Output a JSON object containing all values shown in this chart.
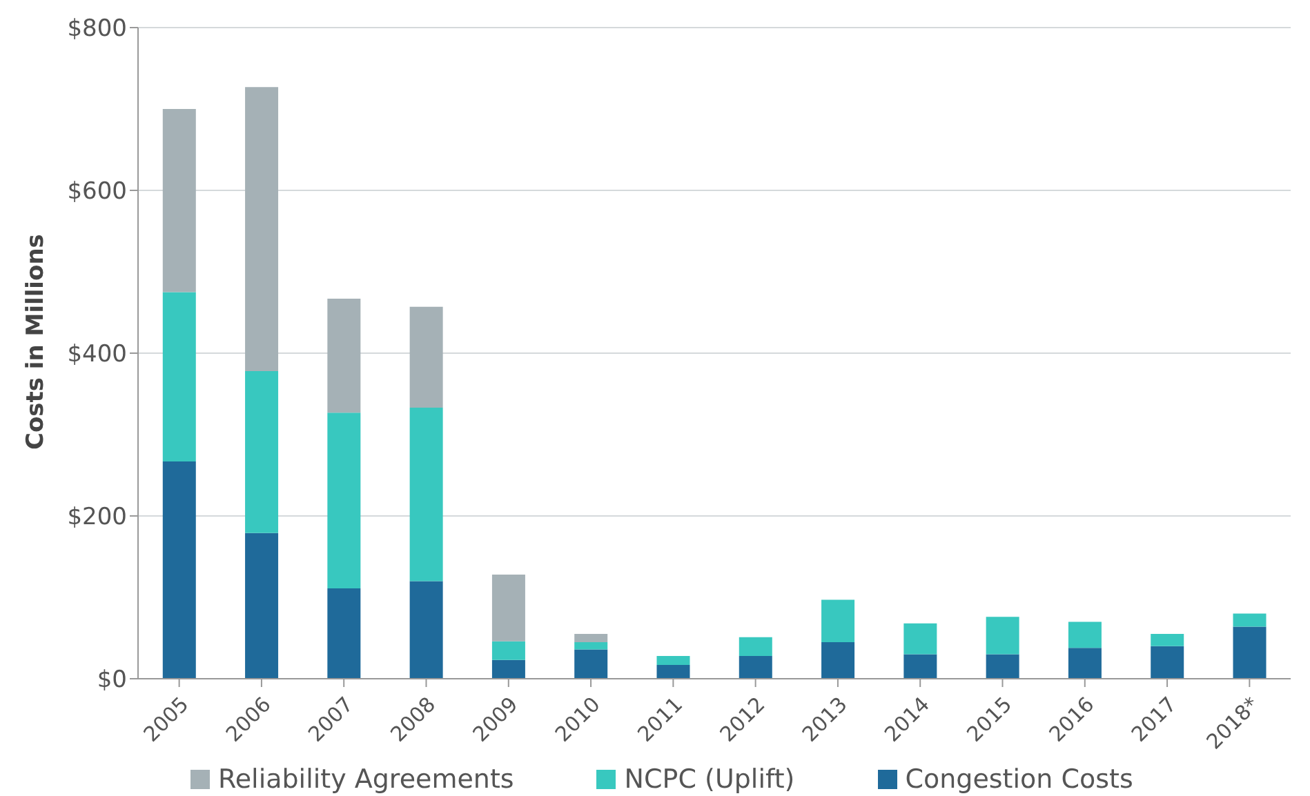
{
  "chart_data": {
    "type": "bar",
    "stacked": true,
    "ylabel": "Costs in Millions",
    "categories": [
      "2005",
      "2006",
      "2007",
      "2008",
      "2009",
      "2010",
      "2011",
      "2012",
      "2013",
      "2014",
      "2015",
      "2016",
      "2017",
      "2018*"
    ],
    "series": [
      {
        "name": "Congestion Costs",
        "color": "#1f6a9a",
        "values": [
          267,
          179,
          111,
          120,
          23,
          36,
          17,
          28,
          45,
          30,
          30,
          38,
          40,
          64
        ]
      },
      {
        "name": "NCPC (Uplift)",
        "color": "#38c8bf",
        "values": [
          208,
          199,
          216,
          213,
          23,
          9,
          11,
          23,
          52,
          38,
          46,
          32,
          15,
          16
        ]
      },
      {
        "name": "Reliability Agreements",
        "color": "#a5b1b6",
        "values": [
          225,
          349,
          140,
          124,
          82,
          10,
          0,
          0,
          0,
          0,
          0,
          0,
          0,
          0
        ]
      }
    ],
    "ylim": [
      0,
      800
    ],
    "yticks": [
      {
        "value": 0,
        "label": "$0"
      },
      {
        "value": 200,
        "label": "$200"
      },
      {
        "value": 400,
        "label": "$400"
      },
      {
        "value": 600,
        "label": "$600"
      },
      {
        "value": 800,
        "label": "$800"
      }
    ],
    "grid": "y",
    "legend": "bottom"
  }
}
